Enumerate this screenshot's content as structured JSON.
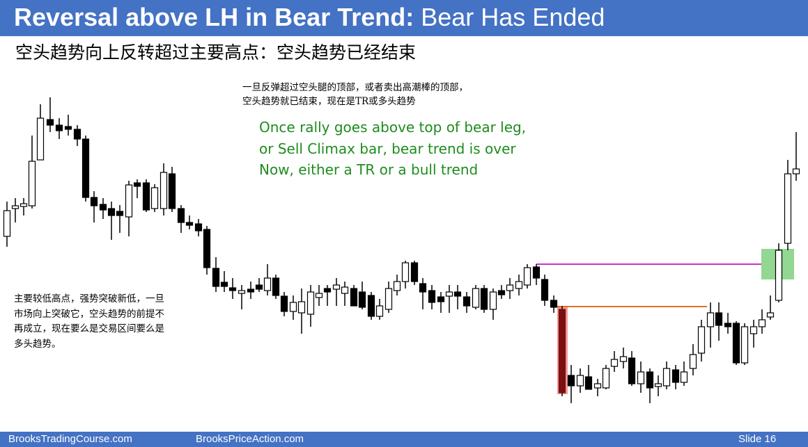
{
  "header": {
    "title_bold": "Reversal above LH in Bear Trend:",
    "title_rest": "Bear Has Ended",
    "subtitle": "空头趋势向上反转超过主要高点：空头趋势已经结束"
  },
  "top_note": [
    "一旦反弹超过空头腿的顶部，或者卖出高潮棒的顶部，",
    "空头趋势就已结束，现在是TR或多头趋势"
  ],
  "english_note": [
    "Once rally goes above top of bear leg,",
    "or Sell Climax bar, bear trend is over",
    "Now, either a TR or a bull trend"
  ],
  "left_note": [
    "主要较低高点，强势突破新低，一旦",
    "市场向上突破它，空头趋势的前提不",
    "再成立，现在要么是交易区间要么是",
    "多头趋势。"
  ],
  "footer": {
    "site_1": "BrooksTradingCourse.com",
    "site_2": "BrooksPriceAction.com",
    "slide": "Slide  16"
  }
}
